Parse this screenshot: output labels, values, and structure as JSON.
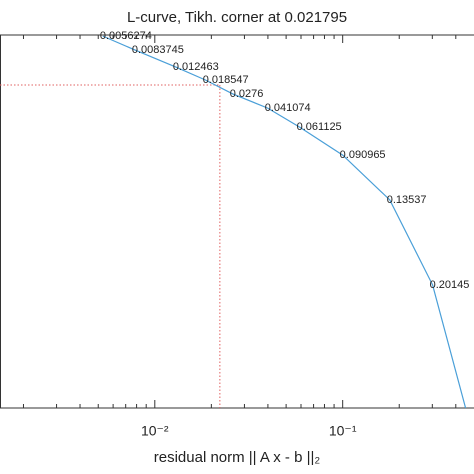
{
  "chart_data": {
    "type": "line",
    "title": "L-curve, Tikh. corner at 0.021795",
    "x_label": "residual norm || A x - b ||₂",
    "x_scale": "log",
    "xlim": [
      0.0015,
      0.5
    ],
    "ylim": [
      0,
      1
    ],
    "xticks": [
      {
        "value": 0.01,
        "label": "10⁻²"
      },
      {
        "value": 0.1,
        "label": "10⁻¹"
      }
    ],
    "xminorticks": [
      0.002,
      0.003,
      0.004,
      0.005,
      0.006,
      0.007,
      0.008,
      0.009,
      0.02,
      0.03,
      0.04,
      0.05,
      0.06,
      0.07,
      0.08,
      0.09,
      0.2,
      0.3,
      0.4
    ],
    "series": [
      {
        "color": "#4a9fd8",
        "x": [
          0.00529,
          0.00783,
          0.01294,
          0.01866,
          0.026,
          0.0399,
          0.059,
          0.1,
          0.178,
          0.301,
          0.451
        ],
        "values": [
          0.997,
          0.96,
          0.914,
          0.879,
          0.842,
          0.804,
          0.753,
          0.678,
          0.558,
          0.33,
          0.0
        ],
        "point_labels": [
          0.0056274,
          0.0083745,
          0.012463,
          0.018547,
          0.0276,
          0.041074,
          0.061125,
          0.090965,
          0.13537,
          0.20145,
          null
        ]
      }
    ],
    "corner": {
      "x": 0.0222,
      "y": 0.866,
      "color": "#e06060"
    }
  }
}
